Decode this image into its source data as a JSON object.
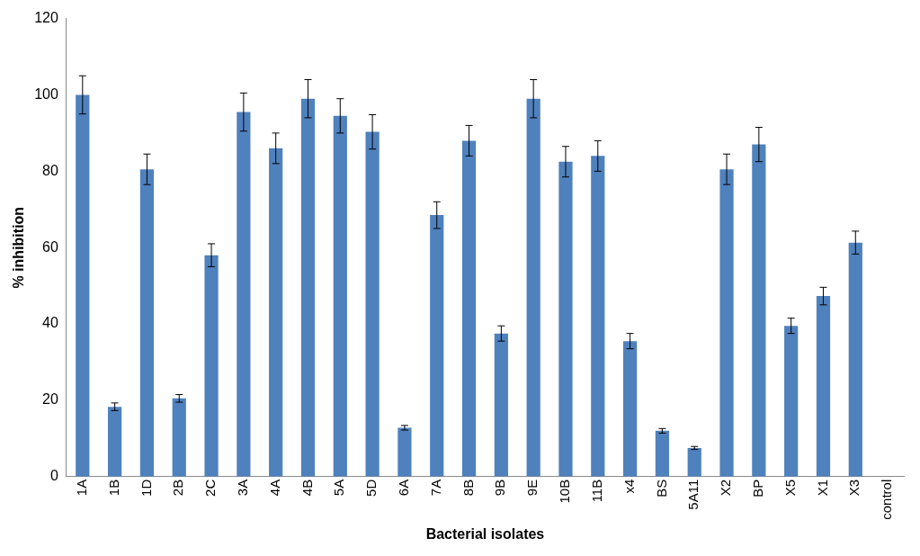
{
  "chart_data": {
    "type": "bar",
    "xlabel": "Bacterial isolates",
    "ylabel": "% inhibition",
    "categories": [
      "1A",
      "1B",
      "1D",
      "2B",
      "2C",
      "3A",
      "4A",
      "4B",
      "5A",
      "5D",
      "6A",
      "7A",
      "8B",
      "9B",
      "9E",
      "10B",
      "11B",
      "x4",
      "BS",
      "5A11",
      "X2",
      "BP",
      "X5",
      "X1",
      "X3",
      "control"
    ],
    "series": [
      {
        "color": "#4f81bd",
        "values": [
          100,
          18.3,
          80.5,
          20.5,
          58,
          95.5,
          86,
          99,
          94.5,
          90.3,
          12.8,
          68.5,
          88,
          37.5,
          99,
          82.5,
          84,
          35.5,
          12,
          7.5,
          80.5,
          87,
          39.5,
          47.3,
          61.3,
          0
        ],
        "errors": [
          5,
          1,
          4,
          1,
          3,
          5,
          4,
          5,
          4.5,
          4.5,
          0.6,
          3.5,
          4,
          2,
          5,
          4,
          4,
          2,
          0.6,
          0.4,
          4,
          4.5,
          2,
          2.3,
          3,
          null
        ]
      }
    ],
    "ylim": [
      0,
      120
    ],
    "yticks": [
      0,
      20,
      40,
      60,
      80,
      100,
      120
    ],
    "grid": false,
    "legend": false
  }
}
